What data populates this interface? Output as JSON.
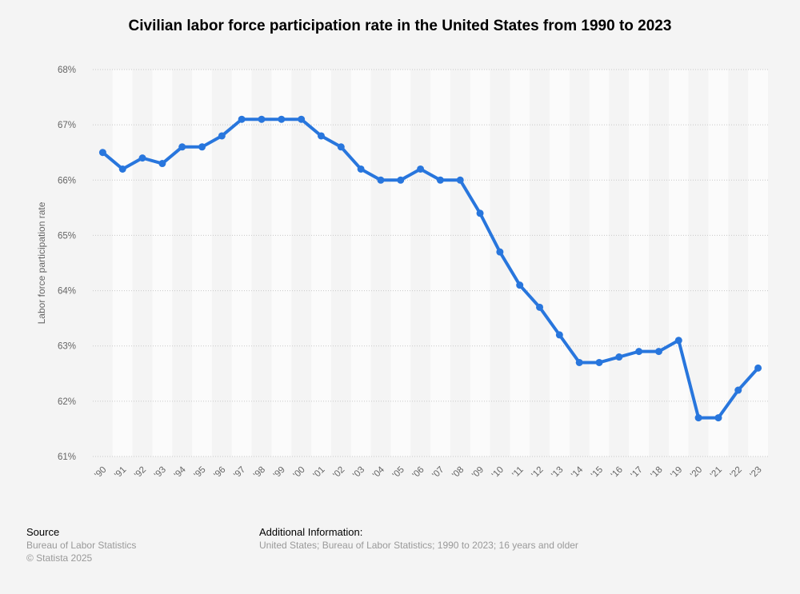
{
  "chart_data": {
    "type": "line",
    "title": "Civilian labor force participation rate in the United States from 1990 to 2023",
    "xlabel": "",
    "ylabel": "Labor force participation rate",
    "categories": [
      "'90",
      "'91",
      "'92",
      "'93",
      "'94",
      "'95",
      "'96",
      "'97",
      "'98",
      "'99",
      "'00",
      "'01",
      "'02",
      "'03",
      "'04",
      "'05",
      "'06",
      "'07",
      "'08",
      "'09",
      "'10",
      "'11",
      "'12",
      "'13",
      "'14",
      "'15",
      "'16",
      "'17",
      "'18",
      "'19",
      "'20",
      "'21",
      "'22",
      "'23"
    ],
    "values": [
      66.5,
      66.2,
      66.4,
      66.3,
      66.6,
      66.6,
      66.8,
      67.1,
      67.1,
      67.1,
      67.1,
      66.8,
      66.6,
      66.2,
      66.0,
      66.0,
      66.2,
      66.0,
      66.0,
      65.4,
      64.7,
      64.1,
      63.7,
      63.2,
      62.7,
      62.7,
      62.8,
      62.9,
      62.9,
      63.1,
      61.7,
      61.7,
      62.2,
      62.6
    ],
    "ylim": [
      61,
      68
    ],
    "yticks": [
      "61%",
      "62%",
      "63%",
      "64%",
      "65%",
      "66%",
      "67%",
      "68%"
    ],
    "grid": true,
    "line_color": "#2876dd"
  },
  "footer": {
    "source_heading": "Source",
    "source_line1": "Bureau of Labor Statistics",
    "source_line2": "© Statista 2025",
    "info_heading": "Additional Information:",
    "info_text": "United States; Bureau of Labor Statistics; 1990 to 2023; 16 years and older"
  }
}
